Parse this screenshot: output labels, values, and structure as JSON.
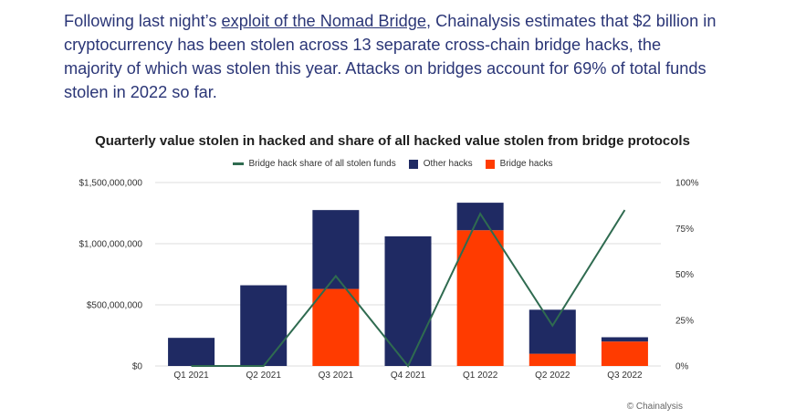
{
  "intro": {
    "text_before": "Following last night’s ",
    "link_text": "exploit of the Nomad Bridge",
    "text_after": ", Chainalysis estimates that $2 billion in cryptocurrency has been stolen across 13 separate cross-chain bridge hacks, the majority of which was stolen this year. Attacks on bridges account for 69% of total funds stolen in 2022 so far."
  },
  "footer": {
    "credit": "© Chainalysis"
  },
  "colors": {
    "other_hacks": "#1f2a63",
    "bridge_hacks": "#ff3b00",
    "share_line": "#2f6b50",
    "grid": "#dddddd"
  },
  "chart_data": {
    "type": "bar",
    "title": "Quarterly value stolen in hacked and share of all hacked value stolen from bridge protocols",
    "categories": [
      "Q1 2021",
      "Q2 2021",
      "Q3 2021",
      "Q4 2021",
      "Q1 2022",
      "Q2 2022",
      "Q3 2022"
    ],
    "series": [
      {
        "name": "Other hacks",
        "kind": "stacked-bar",
        "values": [
          230000000,
          660000000,
          645000000,
          1060000000,
          225000000,
          360000000,
          35000000
        ]
      },
      {
        "name": "Bridge hacks",
        "kind": "stacked-bar",
        "values": [
          0,
          0,
          630000000,
          0,
          1110000000,
          100000000,
          200000000
        ]
      },
      {
        "name": "Bridge hack share of all stolen funds",
        "kind": "line",
        "axis": "right",
        "values": [
          0,
          0,
          0.49,
          0,
          0.83,
          0.22,
          0.85
        ]
      }
    ],
    "legend_order": [
      "Bridge hack share of all stolen funds",
      "Other hacks",
      "Bridge hacks"
    ],
    "y_left": {
      "ticks": [
        0,
        500000000,
        1000000000,
        1500000000
      ],
      "tick_labels": [
        "$0",
        "$500,000,000",
        "$1,000,000,000",
        "$1,500,000,000"
      ],
      "ylim": [
        0,
        1500000000
      ]
    },
    "y_right": {
      "ticks": [
        0,
        0.25,
        0.5,
        0.75,
        1.0
      ],
      "tick_labels": [
        "0%",
        "25%",
        "50%",
        "75%",
        "100%"
      ],
      "ylim": [
        0,
        1
      ]
    },
    "grid": true,
    "legend_position": "top-center"
  }
}
